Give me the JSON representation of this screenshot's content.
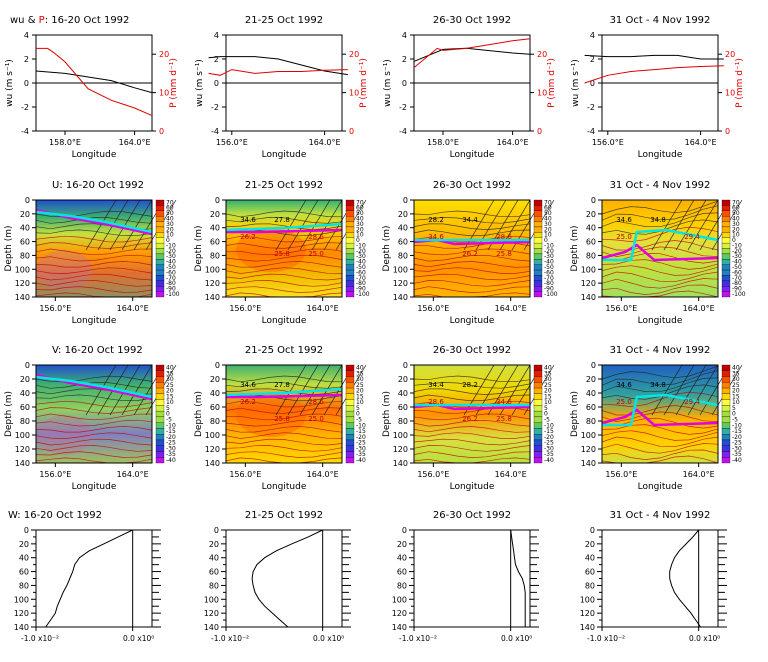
{
  "colors": {
    "wu_line": "#000000",
    "precip_line": "#e00000",
    "cyan_line": "#00e5e5",
    "magenta_line": "#e000e0",
    "contour_line": "#202020",
    "contour_red": "#c00000",
    "colorscale": [
      "#c00000",
      "#e02000",
      "#ff5000",
      "#ff8000",
      "#ffb000",
      "#ffd800",
      "#ffff40",
      "#d8f040",
      "#a0e040",
      "#60c860",
      "#30b0a0",
      "#2080c0",
      "#2050d0",
      "#4030e0",
      "#8020f0",
      "#c010f0"
    ]
  },
  "chart_data": [
    {
      "panel": "wu-P-1",
      "type": "line",
      "title_parts": [
        "wu & ",
        "P",
        ": 16-20 Oct 1992"
      ],
      "xlabel": "Longitude",
      "ylabel_left": "wu (m s⁻¹)",
      "ylabel_right": "P (mm d⁻¹)",
      "x_ticklabels": [
        "158.0°E",
        "164.0°E"
      ],
      "y_ticklabels": [
        "-4",
        "-2",
        "0",
        "2",
        "4"
      ],
      "y2_ticklabels": [
        "0",
        "10",
        "20"
      ],
      "ylim": [
        -4,
        4
      ],
      "y2lim": [
        0,
        25
      ],
      "series": [
        {
          "key": "wu",
          "x": [
            155.5,
            158,
            160,
            162,
            164,
            165.5
          ],
          "values": [
            1.0,
            0.8,
            0.5,
            0.2,
            -0.4,
            -0.8
          ]
        },
        {
          "key": "P",
          "x": [
            155.5,
            156.5,
            157,
            158,
            160,
            162,
            164,
            165.5
          ],
          "values": [
            21.5,
            21.5,
            20.5,
            18,
            11,
            8,
            6,
            4
          ]
        }
      ]
    },
    {
      "panel": "wu-P-2",
      "type": "line",
      "title_parts": [
        "",
        "",
        "21-25 Oct 1992"
      ],
      "xlabel": "Longitude",
      "ylabel_left": "wu (m s⁻¹)",
      "ylabel_right": "P (mm d⁻¹)",
      "x_ticklabels": [
        "156.0°E",
        "164.0°E"
      ],
      "y_ticklabels": [
        "-4",
        "-2",
        "0",
        "2",
        "4"
      ],
      "y2_ticklabels": [
        "0",
        "10",
        "20"
      ],
      "ylim": [
        -4,
        4
      ],
      "y2lim": [
        0,
        25
      ],
      "series": [
        {
          "key": "wu",
          "x": [
            154,
            155,
            156,
            158,
            160,
            162,
            164,
            166
          ],
          "values": [
            2.1,
            2.2,
            2.2,
            2.2,
            2.0,
            1.5,
            1.0,
            0.7
          ]
        },
        {
          "key": "P",
          "x": [
            154,
            155,
            156,
            158,
            160,
            162,
            164,
            166
          ],
          "values": [
            15,
            14.5,
            16,
            15,
            15.5,
            15.5,
            15.8,
            16
          ]
        }
      ]
    },
    {
      "panel": "wu-P-3",
      "type": "line",
      "title_parts": [
        "",
        "",
        "26-30 Oct 1992"
      ],
      "xlabel": "Longitude",
      "ylabel_left": "wu (m s⁻¹)",
      "ylabel_right": "P (mm d⁻¹)",
      "x_ticklabels": [
        "158.0°E",
        "164.0°E"
      ],
      "y_ticklabels": [
        "-4",
        "-2",
        "0",
        "2",
        "4"
      ],
      "y2_ticklabels": [
        "0",
        "10",
        "20"
      ],
      "ylim": [
        -4,
        4
      ],
      "y2lim": [
        0,
        25
      ],
      "series": [
        {
          "key": "wu",
          "x": [
            155.5,
            158,
            160,
            162,
            164,
            165.5
          ],
          "values": [
            1.8,
            2.8,
            2.9,
            2.7,
            2.5,
            2.4
          ]
        },
        {
          "key": "P",
          "x": [
            155.5,
            157.5,
            158,
            160,
            162,
            164,
            165.5
          ],
          "values": [
            16.5,
            21.5,
            21,
            21.5,
            22.5,
            23.5,
            24
          ]
        }
      ]
    },
    {
      "panel": "wu-P-4",
      "type": "line",
      "title_parts": [
        "",
        "",
        "31 Oct - 4 Nov 1992"
      ],
      "xlabel": "Longitude",
      "ylabel_left": "wu (m s⁻¹)",
      "ylabel_right": "P (mm d⁻¹)",
      "x_ticklabels": [
        "156.0°E",
        "164.0°E"
      ],
      "y_ticklabels": [
        "-4",
        "-2",
        "0",
        "2",
        "4"
      ],
      "y2_ticklabels": [
        "0",
        "10",
        "20"
      ],
      "ylim": [
        -4,
        4
      ],
      "y2lim": [
        0,
        25
      ],
      "series": [
        {
          "key": "wu",
          "x": [
            154,
            156,
            158,
            160,
            162,
            164,
            166
          ],
          "values": [
            2.3,
            2.2,
            2.2,
            2.3,
            2.3,
            2.0,
            2.0
          ]
        },
        {
          "key": "P",
          "x": [
            154,
            156,
            158,
            160,
            162,
            164,
            166
          ],
          "values": [
            12.5,
            14.5,
            15.5,
            16,
            16.5,
            16.8,
            17
          ]
        }
      ]
    },
    {
      "panel": "U-1",
      "type": "heatmap",
      "title": "U: 16-20 Oct 1992",
      "xlabel": "Longitude",
      "ylabel": "Depth (m)",
      "x_ticklabels": [
        "156.0°E",
        "164.0°E"
      ],
      "y_ticklabels": [
        "0",
        "20",
        "40",
        "60",
        "80",
        "100",
        "120",
        "140"
      ],
      "colorbar_ticklabels": [
        "70",
        "60",
        "50",
        "40",
        "30",
        "20",
        "10",
        "0",
        "-10",
        "-20",
        "-30",
        "-40",
        "-50",
        "-60",
        "-70",
        "-80",
        "-90",
        "-100"
      ],
      "contour_labels": [],
      "scheme": 0
    },
    {
      "panel": "U-2",
      "type": "heatmap",
      "title": "21-25 Oct 1992",
      "xlabel": "Longitude",
      "ylabel": "Depth (m)",
      "x_ticklabels": [
        "156.0°E",
        "164.0°E"
      ],
      "y_ticklabels": [
        "0",
        "20",
        "40",
        "60",
        "80",
        "100",
        "120",
        "140"
      ],
      "colorbar_ticklabels": [
        "70",
        "60",
        "50",
        "40",
        "30",
        "20",
        "10",
        "0",
        "-10",
        "-20",
        "-30",
        "-40",
        "-50",
        "-60",
        "-70",
        "-80",
        "-90",
        "-100"
      ],
      "contour_labels": [
        "34.6",
        "27.8",
        "28.6",
        "26.2",
        "25.8",
        "25.0"
      ],
      "scheme": 1
    },
    {
      "panel": "U-3",
      "type": "heatmap",
      "title": "26-30 Oct 1992",
      "xlabel": "Longitude",
      "ylabel": "Depth (m)",
      "x_ticklabels": [
        "156.0°E",
        "164.0°E"
      ],
      "y_ticklabels": [
        "0",
        "20",
        "40",
        "60",
        "80",
        "100",
        "120",
        "140"
      ],
      "colorbar_ticklabels": [
        "70",
        "60",
        "50",
        "40",
        "30",
        "20",
        "10",
        "0",
        "-10",
        "-20",
        "-30",
        "-40",
        "-50",
        "-60",
        "-70",
        "-80",
        "-90",
        "-100"
      ],
      "contour_labels": [
        "28.2",
        "34.4",
        "28.6",
        "34.6",
        "26.2",
        "25.8"
      ],
      "scheme": 2
    },
    {
      "panel": "U-4",
      "type": "heatmap",
      "title": "31 Oct - 4 Nov 1992",
      "xlabel": "Longitude",
      "ylabel": "Depth (m)",
      "x_ticklabels": [
        "156.0°E",
        "164.0°E"
      ],
      "y_ticklabels": [
        "0",
        "20",
        "40",
        "60",
        "80",
        "100",
        "120",
        "140"
      ],
      "colorbar_ticklabels": [
        "70",
        "60",
        "50",
        "40",
        "30",
        "20",
        "10",
        "0",
        "-10",
        "-20",
        "-30",
        "-40",
        "-50",
        "-60",
        "-70",
        "-80",
        "-90",
        "-100"
      ],
      "contour_labels": [
        "34.6",
        "34.8",
        "29.4",
        "25.0"
      ],
      "scheme": 3
    },
    {
      "panel": "V-1",
      "type": "heatmap",
      "title": "V: 16-20 Oct 1992",
      "xlabel": "Longitude",
      "ylabel": "Depth (m)",
      "x_ticklabels": [
        "156.0°E",
        "164.0°E"
      ],
      "y_ticklabels": [
        "0",
        "20",
        "40",
        "60",
        "80",
        "100",
        "120",
        "140"
      ],
      "colorbar_ticklabels": [
        "40",
        "35",
        "30",
        "25",
        "20",
        "15",
        "10",
        "5",
        "0",
        "-5",
        "-10",
        "-15",
        "-20",
        "-25",
        "-30",
        "-35",
        "-40"
      ],
      "contour_labels": [],
      "scheme": 4
    },
    {
      "panel": "V-2",
      "type": "heatmap",
      "title": "21-25 Oct 1992",
      "xlabel": "Longitude",
      "ylabel": "Depth (m)",
      "x_ticklabels": [
        "156.0°E",
        "164.0°E"
      ],
      "y_ticklabels": [
        "0",
        "20",
        "40",
        "60",
        "80",
        "100",
        "120",
        "140"
      ],
      "colorbar_ticklabels": [
        "40",
        "35",
        "30",
        "25",
        "20",
        "15",
        "10",
        "5",
        "0",
        "-5",
        "-10",
        "-15",
        "-20",
        "-25",
        "-30",
        "-35",
        "-40"
      ],
      "contour_labels": [
        "34.6",
        "27.8",
        "28.6",
        "26.2",
        "25.8",
        "25.0"
      ],
      "scheme": 5
    },
    {
      "panel": "V-3",
      "type": "heatmap",
      "title": "26-30 Oct 1992",
      "xlabel": "Longitude",
      "ylabel": "Depth (m)",
      "x_ticklabels": [
        "156.0°E",
        "164.0°E"
      ],
      "y_ticklabels": [
        "0",
        "20",
        "40",
        "60",
        "80",
        "100",
        "120",
        "140"
      ],
      "colorbar_ticklabels": [
        "40",
        "35",
        "30",
        "25",
        "20",
        "15",
        "10",
        "5",
        "0",
        "-5",
        "-10",
        "-15",
        "-20",
        "-25",
        "-30",
        "-35",
        "-40"
      ],
      "contour_labels": [
        "34.4",
        "28.2",
        "34.6",
        "28.6",
        "26.2",
        "25.8"
      ],
      "scheme": 6
    },
    {
      "panel": "V-4",
      "type": "heatmap",
      "title": "31 Oct - 4 Nov 1992",
      "xlabel": "Longitude",
      "ylabel": "Depth (m)",
      "x_ticklabels": [
        "156.0°E",
        "164.0°E"
      ],
      "y_ticklabels": [
        "0",
        "20",
        "40",
        "60",
        "80",
        "100",
        "120",
        "140"
      ],
      "colorbar_ticklabels": [
        "40",
        "35",
        "30",
        "25",
        "20",
        "15",
        "10",
        "5",
        "0",
        "-5",
        "-10",
        "-15",
        "-20",
        "-25",
        "-30",
        "-35",
        "-40"
      ],
      "contour_labels": [
        "34.6",
        "34.8",
        "29.4",
        "25.0"
      ],
      "scheme": 7
    },
    {
      "panel": "W-1",
      "type": "line",
      "title": "W: 16-20 Oct 1992",
      "x_ticklabels": [
        "-1.0 x10⁻²",
        "0.0 x10⁰"
      ],
      "y_ticklabels": [
        "0",
        "20",
        "40",
        "60",
        "80",
        "100",
        "120",
        "140"
      ],
      "xlim": [
        -0.01,
        0.002
      ],
      "ylim": [
        0,
        140
      ],
      "depth": [
        0,
        10,
        20,
        30,
        40,
        50,
        60,
        70,
        80,
        90,
        100,
        110,
        120,
        130,
        140
      ],
      "values": [
        0,
        -0.0015,
        -0.003,
        -0.0045,
        -0.0055,
        -0.006,
        -0.0062,
        -0.0065,
        -0.0068,
        -0.0072,
        -0.0075,
        -0.0078,
        -0.008,
        -0.0085,
        -0.009
      ]
    },
    {
      "panel": "W-2",
      "type": "line",
      "title": "21-25 Oct 1992",
      "x_ticklabels": [
        "-1.0 x10⁻²",
        "0.0 x10⁰"
      ],
      "y_ticklabels": [
        "0",
        "20",
        "40",
        "60",
        "80",
        "100",
        "120",
        "140"
      ],
      "xlim": [
        -0.01,
        0.002
      ],
      "ylim": [
        0,
        140
      ],
      "depth": [
        0,
        10,
        20,
        30,
        40,
        50,
        60,
        70,
        80,
        90,
        100,
        110,
        120,
        130,
        140
      ],
      "values": [
        0,
        -0.0015,
        -0.0032,
        -0.0048,
        -0.006,
        -0.0068,
        -0.0072,
        -0.0073,
        -0.0072,
        -0.007,
        -0.0066,
        -0.006,
        -0.0052,
        -0.0044,
        -0.0036
      ]
    },
    {
      "panel": "W-3",
      "type": "line",
      "title": "26-30 Oct 1992",
      "x_ticklabels": [
        "-1.0 x10⁻²",
        "0.0 x10⁰"
      ],
      "y_ticklabels": [
        "0",
        "20",
        "40",
        "60",
        "80",
        "100",
        "120",
        "140"
      ],
      "xlim": [
        -0.01,
        0.002
      ],
      "ylim": [
        0,
        140
      ],
      "depth": [
        0,
        10,
        20,
        30,
        40,
        50,
        60,
        70,
        80,
        90,
        100,
        110,
        120,
        130,
        140
      ],
      "values": [
        0,
        0.0001,
        0.0002,
        0.0003,
        0.0004,
        0.0005,
        0.0008,
        0.0012,
        0.0014,
        0.0015,
        0.0015,
        0.0015,
        0.0015,
        0.0015,
        0.0015
      ]
    },
    {
      "panel": "W-4",
      "type": "line",
      "title": "31 Oct - 4 Nov 1992",
      "x_ticklabels": [
        "-1.0 x10⁻²",
        "0.0 x10⁰"
      ],
      "y_ticklabels": [
        "0",
        "20",
        "40",
        "60",
        "80",
        "100",
        "120",
        "140"
      ],
      "xlim": [
        -0.01,
        0.002
      ],
      "ylim": [
        0,
        140
      ],
      "depth": [
        0,
        10,
        20,
        30,
        40,
        50,
        60,
        70,
        80,
        90,
        100,
        110,
        120,
        130,
        140
      ],
      "values": [
        0,
        -0.0006,
        -0.0013,
        -0.002,
        -0.0025,
        -0.0028,
        -0.003,
        -0.003,
        -0.0028,
        -0.0025,
        -0.002,
        -0.0014,
        -0.0008,
        -0.0003,
        0.0002
      ]
    }
  ]
}
